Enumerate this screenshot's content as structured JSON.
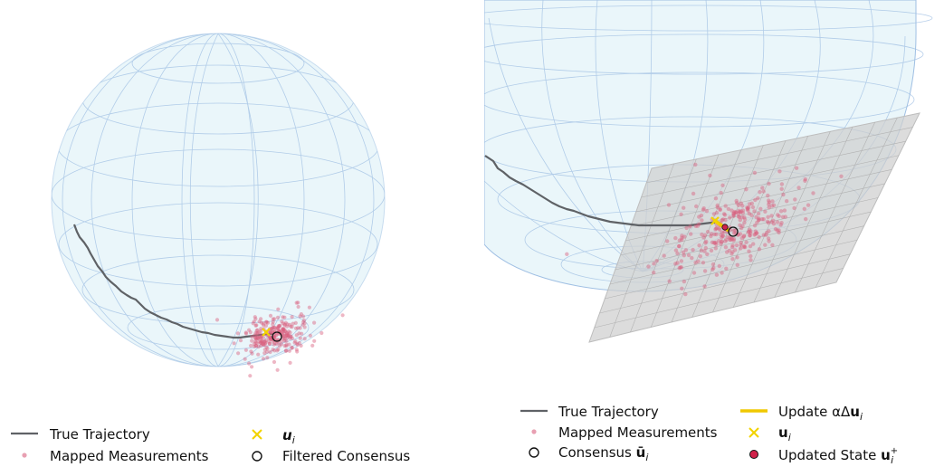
{
  "left_panel": {
    "legend": {
      "true_trajectory": "True Trajectory",
      "mapped_measurements": "Mapped Measurements",
      "u_i": "u",
      "u_i_sub": "i",
      "filtered_consensus": "Filtered Consensus"
    }
  },
  "right_panel": {
    "legend": {
      "true_trajectory": "True Trajectory",
      "mapped_measurements": "Mapped Measurements",
      "consensus_prefix": "Consensus ",
      "consensus_symbol": "ū",
      "consensus_sub": "i",
      "update_prefix": "Update αΔ",
      "update_symbol": "u",
      "update_sub": "i",
      "u_i": "u",
      "u_i_sub": "i",
      "updated_state_prefix": "Updated State ",
      "updated_state_symbol": "u",
      "updated_state_sub": "i",
      "updated_state_sup": "+"
    }
  },
  "colors": {
    "sphere_fill": "#eaf6fa",
    "grid": "#9fbfe3",
    "trajectory": "#5f6266",
    "measurement": "#d9607f",
    "u_marker": "#f2d300",
    "update_line": "#f0c800",
    "consensus_stroke": "#111111",
    "updated_state_fill": "#d0224a",
    "plane_fill": "#cfcfcf",
    "plane_grid": "#a8a8a8"
  }
}
